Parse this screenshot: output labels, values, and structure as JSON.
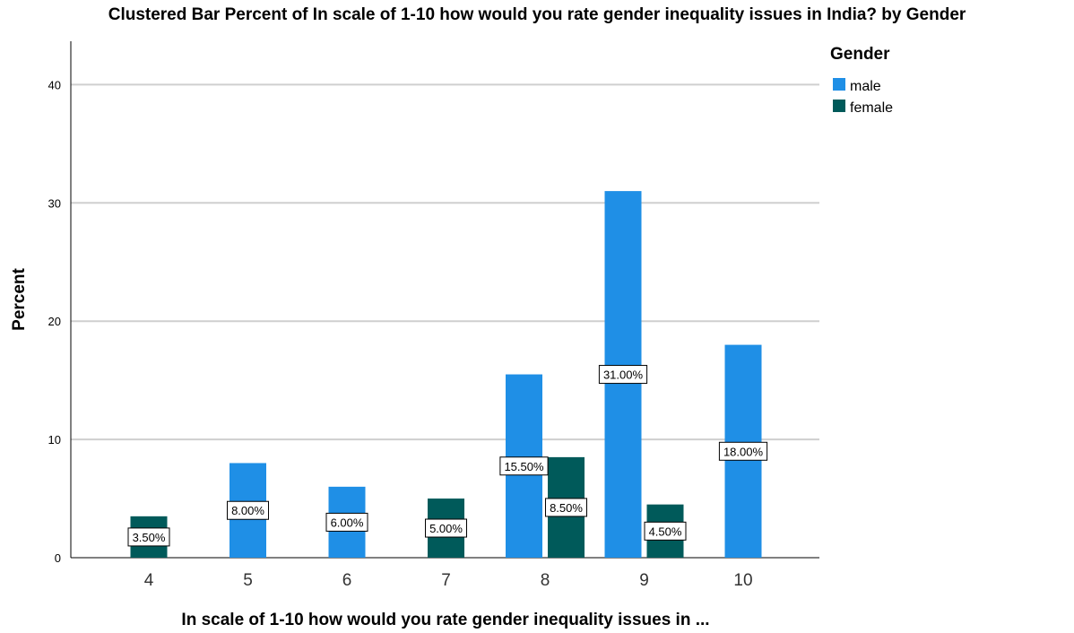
{
  "chart_data": {
    "type": "bar",
    "title": "Clustered Bar Percent of In scale of 1-10 how would you rate gender inequality issues in India? by Gender",
    "xlabel": "In scale of 1-10 how would you rate gender inequality issues in ...",
    "ylabel": "Percent",
    "categories": [
      "4",
      "5",
      "6",
      "7",
      "8",
      "9",
      "10"
    ],
    "ylim": [
      0,
      45
    ],
    "yticks": [
      0,
      10,
      20,
      30,
      40
    ],
    "grid": true,
    "legend": {
      "title": "Gender",
      "placement": "top-right"
    },
    "series": [
      {
        "name": "male",
        "color": "#1f8fe6",
        "values": [
          null,
          8.0,
          6.0,
          null,
          15.5,
          31.0,
          18.0
        ],
        "labels": [
          null,
          "8.00%",
          "6.00%",
          null,
          "15.50%",
          "31.00%",
          "18.00%"
        ]
      },
      {
        "name": "female",
        "color": "#005a5a",
        "values": [
          3.5,
          null,
          null,
          5.0,
          8.5,
          4.5,
          null
        ],
        "labels": [
          "3.50%",
          null,
          null,
          "5.00%",
          "8.50%",
          "4.50%",
          null
        ]
      }
    ]
  }
}
